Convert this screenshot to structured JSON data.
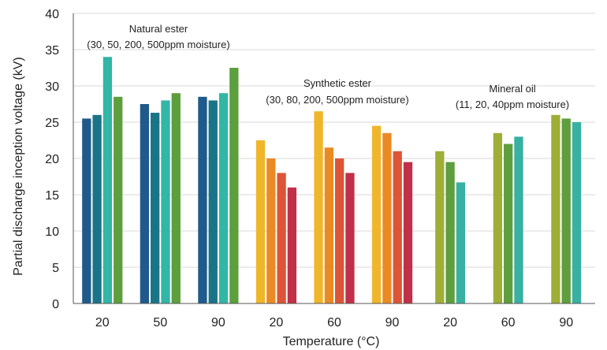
{
  "chart_data": {
    "type": "bar",
    "xlabel": "Temperature (°C)",
    "ylabel": "Partial discharge inception voltage (kV)",
    "ylim": [
      0,
      40
    ],
    "yticks": [
      0,
      5,
      10,
      15,
      20,
      25,
      30,
      35,
      40
    ],
    "grid": "horizontal",
    "groups": [
      {
        "temperature": "20",
        "fluid": "Natural ester",
        "values": [
          25.5,
          26,
          34,
          28.5
        ],
        "colors": [
          "#1f5a8a",
          "#1a7488",
          "#32b6a6",
          "#5d9e3d"
        ]
      },
      {
        "temperature": "50",
        "fluid": "Natural ester",
        "values": [
          27.5,
          26.3,
          28,
          29
        ],
        "colors": [
          "#1f5a8a",
          "#1a7488",
          "#32b6a6",
          "#5d9e3d"
        ]
      },
      {
        "temperature": "90",
        "fluid": "Natural ester",
        "values": [
          28.5,
          28,
          29,
          32.5
        ],
        "colors": [
          "#1f5a8a",
          "#1a7488",
          "#32b6a6",
          "#5d9e3d"
        ]
      },
      {
        "temperature": "20",
        "fluid": "Synthetic ester",
        "values": [
          22.5,
          20,
          18,
          16
        ],
        "colors": [
          "#f0b62a",
          "#ea8a25",
          "#dc5536",
          "#c03048"
        ]
      },
      {
        "temperature": "60",
        "fluid": "Synthetic ester",
        "values": [
          26.5,
          21.5,
          20,
          18
        ],
        "colors": [
          "#f0b62a",
          "#ea8a25",
          "#dc5536",
          "#c03048"
        ]
      },
      {
        "temperature": "90",
        "fluid": "Synthetic ester",
        "values": [
          24.5,
          23.5,
          21,
          19.5
        ],
        "colors": [
          "#f0b62a",
          "#ea8a25",
          "#dc5536",
          "#c03048"
        ]
      },
      {
        "temperature": "20",
        "fluid": "Mineral oil",
        "values": [
          21,
          19.5,
          16.7
        ],
        "colors": [
          "#9fae36",
          "#5e9e3e",
          "#38b0a2"
        ]
      },
      {
        "temperature": "60",
        "fluid": "Mineral oil",
        "values": [
          23.5,
          22,
          23
        ],
        "colors": [
          "#9fae36",
          "#5e9e3e",
          "#38b0a2"
        ]
      },
      {
        "temperature": "90",
        "fluid": "Mineral oil",
        "values": [
          26,
          25.5,
          25
        ],
        "colors": [
          "#9fae36",
          "#5e9e3e",
          "#38b0a2"
        ]
      }
    ],
    "annotations": [
      {
        "line1": "Natural ester",
        "line2": "(30, 50, 200, 500ppm moisture)"
      },
      {
        "line1": "Synthetic ester",
        "line2": "(30, 80, 200, 500ppm moisture)"
      },
      {
        "line1": "Mineral oil",
        "line2": "(11, 20, 40ppm moisture)"
      }
    ],
    "gridline_color": "#d9d9d9",
    "axis_color": "#555555"
  }
}
